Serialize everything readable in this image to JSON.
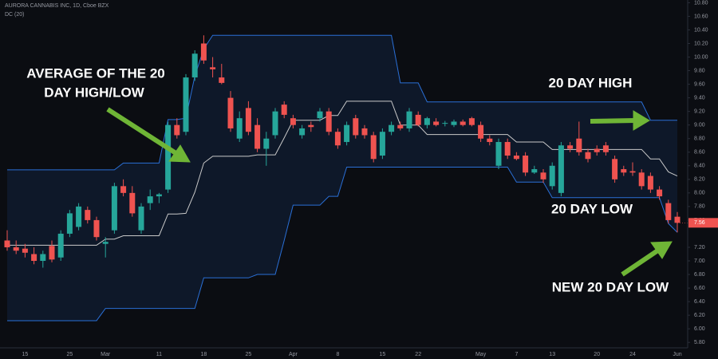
{
  "chart_data": {
    "type": "candlestick",
    "title": "AURORA CANNABIS INC, 1D, Cboe BZX",
    "subtitle": "DC (20)",
    "annotations": [
      "AVERAGE OF THE 20",
      "DAY HIGH/LOW",
      "20 DAY HIGH",
      "20 DAY LOW",
      "NEW 20 DAY LOW"
    ],
    "categories": [
      null,
      null,
      "15",
      null,
      null,
      null,
      null,
      "25",
      null,
      null,
      null,
      "Mar",
      null,
      null,
      null,
      null,
      null,
      "11",
      null,
      null,
      null,
      null,
      "18",
      null,
      null,
      null,
      null,
      "25",
      null,
      null,
      null,
      null,
      "Apr",
      null,
      null,
      null,
      null,
      "8",
      null,
      null,
      null,
      null,
      "15",
      null,
      null,
      null,
      "22",
      null,
      null,
      null,
      null,
      null,
      null,
      "May",
      null,
      null,
      null,
      "7",
      null,
      null,
      null,
      "13",
      null,
      null,
      null,
      null,
      "20",
      null,
      null,
      null,
      "24",
      null,
      null,
      null,
      null,
      "Jun"
    ],
    "open": [
      7.3,
      7.2,
      7.18,
      7.1,
      7.0,
      7.22,
      7.05,
      7.4,
      7.5,
      7.75,
      7.6,
      7.25,
      7.45,
      8.1,
      8.0,
      7.45,
      7.85,
      7.95,
      8.05,
      9.0,
      8.9,
      9.7,
      10.2,
      9.85,
      9.7,
      9.4,
      8.8,
      9.25,
      9.0,
      8.65,
      8.85,
      9.3,
      9.1,
      8.85,
      9.0,
      9.1,
      9.2,
      8.9,
      8.75,
      9.1,
      8.95,
      8.85,
      8.55,
      8.9,
      9.0,
      8.95,
      9.15,
      9.0,
      9.05,
      9.02,
      9.0,
      9.05,
      9.1,
      9.0,
      8.8,
      8.4,
      8.75,
      8.55,
      8.55,
      8.3,
      8.3,
      8.1,
      8.0,
      8.7,
      8.8,
      8.6,
      8.65,
      8.7,
      8.5,
      8.35,
      8.32,
      8.3,
      8.25,
      8.05,
      7.85,
      7.65
    ],
    "high": [
      7.45,
      7.3,
      7.25,
      7.2,
      7.15,
      7.3,
      7.45,
      7.75,
      7.85,
      7.8,
      7.65,
      7.35,
      8.15,
      8.2,
      8.1,
      7.85,
      8.05,
      8.0,
      9.05,
      9.1,
      9.75,
      10.1,
      10.32,
      10.0,
      9.9,
      9.5,
      9.2,
      9.35,
      9.1,
      8.9,
      9.25,
      9.35,
      9.15,
      9.0,
      9.05,
      9.25,
      9.25,
      8.95,
      9.05,
      9.15,
      9.0,
      8.9,
      8.95,
      9.05,
      9.05,
      9.25,
      9.2,
      9.12,
      9.1,
      9.06,
      9.08,
      9.08,
      9.12,
      9.05,
      8.85,
      8.8,
      8.8,
      8.6,
      8.6,
      8.4,
      8.35,
      8.45,
      8.75,
      8.75,
      9.05,
      8.65,
      8.7,
      8.75,
      8.55,
      8.4,
      8.45,
      8.35,
      8.3,
      8.1,
      7.9,
      7.72
    ],
    "low": [
      7.15,
      7.1,
      7.05,
      6.95,
      6.9,
      6.98,
      7.0,
      7.35,
      7.45,
      7.55,
      7.3,
      7.05,
      7.4,
      7.95,
      7.65,
      7.4,
      7.75,
      7.85,
      8.0,
      8.8,
      8.85,
      9.65,
      9.9,
      9.7,
      9.6,
      8.9,
      8.75,
      8.85,
      8.6,
      8.4,
      8.8,
      9.1,
      8.95,
      8.8,
      8.9,
      9.05,
      8.85,
      8.65,
      8.7,
      8.8,
      8.8,
      8.45,
      8.5,
      8.85,
      8.92,
      8.9,
      8.98,
      8.95,
      8.98,
      8.98,
      8.97,
      8.98,
      8.98,
      8.75,
      8.7,
      8.35,
      8.5,
      8.48,
      8.25,
      8.28,
      8.15,
      8.05,
      7.95,
      8.6,
      8.55,
      8.45,
      8.55,
      8.55,
      8.15,
      8.25,
      8.25,
      8.05,
      8.0,
      7.9,
      7.55,
      7.42
    ],
    "close": [
      7.2,
      7.15,
      7.12,
      7.0,
      7.1,
      7.02,
      7.4,
      7.7,
      7.8,
      7.6,
      7.35,
      7.28,
      8.1,
      8.0,
      7.7,
      7.8,
      7.95,
      7.98,
      9.0,
      8.85,
      9.7,
      10.05,
      9.95,
      9.82,
      9.62,
      8.95,
      9.1,
      8.9,
      8.65,
      8.8,
      9.2,
      9.15,
      9.0,
      8.95,
      8.97,
      9.2,
      8.9,
      8.7,
      9.0,
      8.85,
      8.85,
      8.5,
      8.9,
      9.0,
      8.95,
      9.2,
      9.0,
      9.1,
      9.0,
      9.03,
      9.05,
      9.0,
      9.0,
      8.8,
      8.75,
      8.75,
      8.55,
      8.5,
      8.3,
      8.35,
      8.2,
      8.4,
      8.7,
      8.65,
      8.6,
      8.5,
      8.6,
      8.6,
      8.2,
      8.3,
      8.3,
      8.1,
      8.05,
      7.95,
      7.6,
      7.56
    ],
    "upper": [
      8.34,
      8.34,
      8.34,
      8.34,
      8.34,
      8.34,
      8.34,
      8.34,
      8.34,
      8.34,
      8.34,
      8.34,
      8.34,
      8.44,
      8.44,
      8.44,
      8.44,
      8.44,
      9.08,
      9.08,
      9.1,
      9.72,
      10.12,
      10.32,
      10.32,
      10.32,
      10.32,
      10.32,
      10.32,
      10.32,
      10.32,
      10.32,
      10.32,
      10.32,
      10.32,
      10.32,
      10.32,
      10.32,
      10.32,
      10.32,
      10.32,
      10.32,
      10.32,
      10.32,
      9.62,
      9.62,
      9.62,
      9.34,
      9.34,
      9.34,
      9.34,
      9.34,
      9.34,
      9.34,
      9.34,
      9.34,
      9.34,
      9.34,
      9.34,
      9.34,
      9.34,
      9.34,
      9.34,
      9.34,
      9.34,
      9.34,
      9.34,
      9.34,
      9.34,
      9.34,
      9.34,
      9.34,
      9.07,
      9.07,
      9.07,
      9.07
    ],
    "middle": [
      7.23,
      7.23,
      7.23,
      7.23,
      7.23,
      7.23,
      7.23,
      7.23,
      7.23,
      7.23,
      7.23,
      7.32,
      7.32,
      7.37,
      7.37,
      7.37,
      7.37,
      7.37,
      7.69,
      7.69,
      7.7,
      8.01,
      8.44,
      8.54,
      8.54,
      8.54,
      8.54,
      8.54,
      8.56,
      8.56,
      8.56,
      8.81,
      9.07,
      9.07,
      9.07,
      9.07,
      9.14,
      9.14,
      9.35,
      9.35,
      9.35,
      9.35,
      9.35,
      9.35,
      9.0,
      9.0,
      9.0,
      8.86,
      8.86,
      8.86,
      8.86,
      8.86,
      8.86,
      8.86,
      8.86,
      8.86,
      8.86,
      8.75,
      8.75,
      8.75,
      8.75,
      8.64,
      8.64,
      8.64,
      8.64,
      8.64,
      8.64,
      8.64,
      8.64,
      8.64,
      8.64,
      8.64,
      8.5,
      8.5,
      8.31,
      8.25
    ],
    "lower": [
      6.12,
      6.12,
      6.12,
      6.12,
      6.12,
      6.12,
      6.12,
      6.12,
      6.12,
      6.12,
      6.12,
      6.3,
      6.3,
      6.3,
      6.3,
      6.3,
      6.3,
      6.3,
      6.3,
      6.3,
      6.3,
      6.3,
      6.75,
      6.75,
      6.75,
      6.75,
      6.75,
      6.75,
      6.8,
      6.8,
      6.8,
      7.3,
      7.82,
      7.82,
      7.82,
      7.82,
      7.95,
      7.95,
      8.38,
      8.38,
      8.38,
      8.38,
      8.38,
      8.38,
      8.38,
      8.38,
      8.38,
      8.38,
      8.38,
      8.38,
      8.38,
      8.38,
      8.38,
      8.38,
      8.38,
      8.38,
      8.38,
      8.16,
      8.16,
      8.16,
      8.16,
      7.93,
      7.93,
      7.93,
      7.93,
      7.93,
      7.93,
      7.93,
      7.93,
      7.93,
      7.93,
      7.93,
      7.93,
      7.93,
      7.55,
      7.42
    ],
    "up_color": "#26a69a",
    "down_color": "#ef5350",
    "channel_color": "#2a6fd6",
    "basis_color": "#c9c9c9",
    "ylim": [
      5.72,
      10.84
    ],
    "yticks": [
      {
        "value": 5.8,
        "label": "5.80"
      },
      {
        "value": 6.0,
        "label": "6.00"
      },
      {
        "value": 6.2,
        "label": "6.20"
      },
      {
        "value": 6.4,
        "label": "6.40"
      },
      {
        "value": 6.6,
        "label": "6.60"
      },
      {
        "value": 6.8,
        "label": "6.80"
      },
      {
        "value": 7.0,
        "label": "7.00"
      },
      {
        "value": 7.2,
        "label": "7.20"
      },
      {
        "value": 7.6,
        "label": "7.60"
      },
      {
        "value": 7.8,
        "label": "7.80"
      },
      {
        "value": 8.0,
        "label": "8.00"
      },
      {
        "value": 8.2,
        "label": "8.20"
      },
      {
        "value": 8.4,
        "label": "8.40"
      },
      {
        "value": 8.6,
        "label": "8.60"
      },
      {
        "value": 8.8,
        "label": "8.80"
      },
      {
        "value": 9.0,
        "label": "9.00"
      },
      {
        "value": 9.2,
        "label": "9.20"
      },
      {
        "value": 9.4,
        "label": "9.40"
      },
      {
        "value": 9.6,
        "label": "9.60"
      },
      {
        "value": 9.8,
        "label": "9.80"
      },
      {
        "value": 10.0,
        "label": "10.00"
      },
      {
        "value": 10.2,
        "label": "10.20"
      },
      {
        "value": 10.4,
        "label": "10.40"
      },
      {
        "value": 10.6,
        "label": "10.60"
      },
      {
        "value": 10.8,
        "label": "10.80"
      }
    ],
    "grid": false
  }
}
